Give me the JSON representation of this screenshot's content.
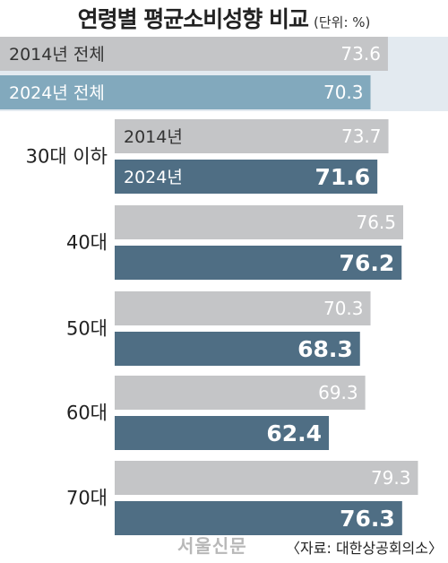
{
  "title": "연령별 평균소비성향 비교",
  "unit": "(단위: %)",
  "source": "〈자료: 대한상공회의소〉",
  "watermark": "서울신문",
  "colors": {
    "y2014": "#c4c5c7",
    "total2024": "#82a9bd",
    "age2024": "#4f6e84",
    "panel": "#e3eaf0"
  },
  "chart_data": {
    "type": "bar",
    "orientation": "horizontal",
    "xlim": [
      0,
      85
    ],
    "series_names": [
      "2014년",
      "2024년"
    ],
    "groups": [
      {
        "label": "",
        "bars": [
          {
            "label": "2014년 전체",
            "value": 73.6,
            "series": "2014"
          },
          {
            "label": "2024년 전체",
            "value": 70.3,
            "series": "2024"
          }
        ]
      },
      {
        "label": "30대 이하",
        "bars": [
          {
            "label": "2014년",
            "value": 73.7,
            "series": "2014"
          },
          {
            "label": "2024년",
            "value": 71.6,
            "series": "2024"
          }
        ]
      },
      {
        "label": "40대",
        "bars": [
          {
            "label": "",
            "value": 76.5,
            "series": "2014"
          },
          {
            "label": "",
            "value": 76.2,
            "series": "2024"
          }
        ]
      },
      {
        "label": "50대",
        "bars": [
          {
            "label": "",
            "value": 70.3,
            "series": "2014"
          },
          {
            "label": "",
            "value": 68.3,
            "series": "2024"
          }
        ]
      },
      {
        "label": "60대",
        "bars": [
          {
            "label": "",
            "value": 69.3,
            "series": "2014"
          },
          {
            "label": "",
            "value": 62.4,
            "series": "2024"
          }
        ]
      },
      {
        "label": "70대",
        "bars": [
          {
            "label": "",
            "value": 79.3,
            "series": "2014"
          },
          {
            "label": "",
            "value": 76.3,
            "series": "2024"
          }
        ]
      }
    ]
  }
}
